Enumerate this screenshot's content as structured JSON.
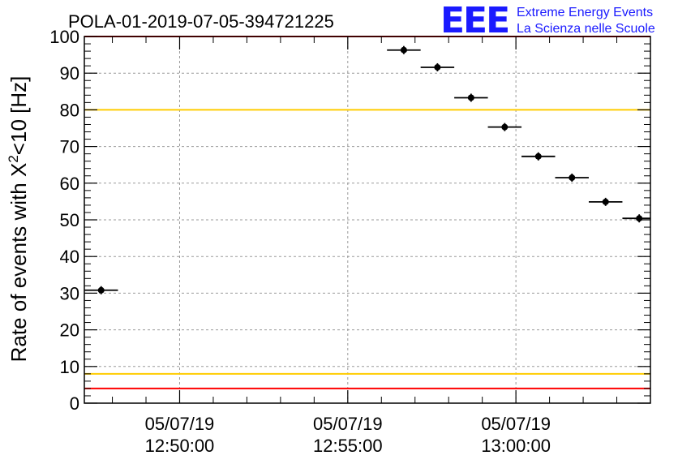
{
  "title": "POLA-01-2019-07-05-394721225",
  "logo": {
    "mark": "EEE",
    "line1": "Extreme Energy Events",
    "line2": "La Scienza nelle Scuole",
    "color": "#1a1aff"
  },
  "chart_data": {
    "type": "scatter",
    "title": "POLA-01-2019-07-05-394721225",
    "xlabel": "",
    "ylabel_parts": [
      "Rate of events with X",
      "2",
      "<10 [Hz]"
    ],
    "x_axis": "time",
    "xlim": [
      "12:47:10",
      "13:04:00"
    ],
    "ylim": [
      0,
      100
    ],
    "yticks": [
      "0",
      "10",
      "20",
      "30",
      "40",
      "50",
      "60",
      "70",
      "80",
      "90",
      "100"
    ],
    "xticks": [
      {
        "time": "12:50:00",
        "date": "05/07/19"
      },
      {
        "time": "12:55:00",
        "date": "05/07/19"
      },
      {
        "time": "13:00:00",
        "date": "05/07/19"
      }
    ],
    "grid": true,
    "series": [
      {
        "x": [
          "12:47:40",
          "12:56:40",
          "12:57:40",
          "12:58:40",
          "12:59:40",
          "13:00:40",
          "13:01:40",
          "13:02:40",
          "13:03:40"
        ],
        "y": [
          30.8,
          96.3,
          91.6,
          83.3,
          75.3,
          67.3,
          61.5,
          54.9,
          50.4
        ],
        "color": "#000000"
      }
    ],
    "reference_lines": [
      {
        "y": 100,
        "color": "#ff0000"
      },
      {
        "y": 80,
        "color": "#ffcc00"
      },
      {
        "y": 8,
        "color": "#ffcc00"
      },
      {
        "y": 4,
        "color": "#ff0000"
      }
    ]
  }
}
